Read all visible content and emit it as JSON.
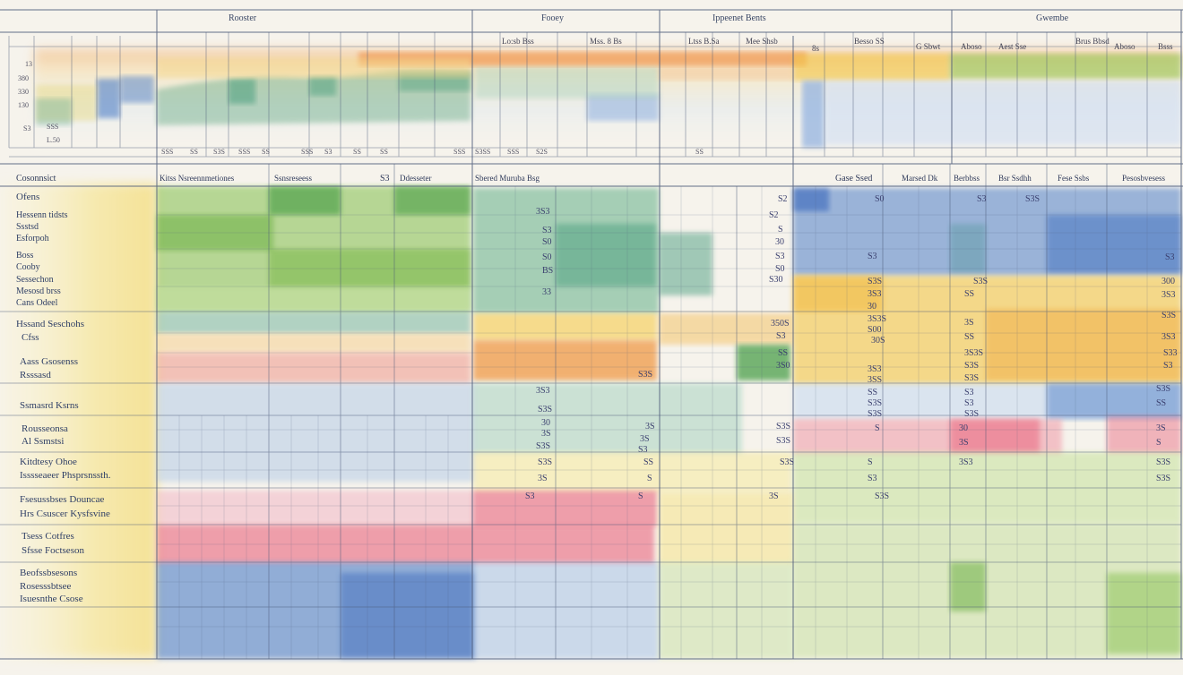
{
  "bands": [
    {
      "text": "Rooster"
    },
    {
      "text": "Fooey"
    },
    {
      "text": "Ippeenet Bents"
    },
    {
      "text": "Gwembe"
    }
  ],
  "subheaders": [
    {
      "text": "Lo:sb Bss"
    },
    {
      "text": "Mss. 8 Bs"
    },
    {
      "text": "Ltss B.Sa"
    },
    {
      "text": "Mee Shsb"
    },
    {
      "text": "8s"
    },
    {
      "text": "Besso SS"
    },
    {
      "text": "G Sbwt"
    },
    {
      "text": "Aboso"
    },
    {
      "text": "Aest Sse"
    },
    {
      "text": "Brus Bbsd"
    },
    {
      "text": "Aboso"
    },
    {
      "text": "Bsss"
    }
  ],
  "y_ticks": [
    {
      "text": "13"
    },
    {
      "text": "380"
    },
    {
      "text": "330"
    },
    {
      "text": "130"
    },
    {
      "text": "S3"
    },
    {
      "text": "L.50"
    },
    {
      "text": "SSS"
    }
  ],
  "x_ticks": [
    {
      "text": "SSS"
    },
    {
      "text": "SS"
    },
    {
      "text": "S3S"
    },
    {
      "text": "SSS"
    },
    {
      "text": "SS"
    },
    {
      "text": "SSS"
    },
    {
      "text": "S3"
    },
    {
      "text": "SS"
    },
    {
      "text": "SS"
    },
    {
      "text": "SSS"
    },
    {
      "text": "S3SS"
    },
    {
      "text": "SSS"
    },
    {
      "text": "S2S"
    },
    {
      "text": "SS"
    }
  ],
  "col_headers": [
    {
      "text": "Cosonnsict"
    },
    {
      "text": "Kitss Nsreennmetiones"
    },
    {
      "text": "Ssnsreseess"
    },
    {
      "text": "S3"
    },
    {
      "text": "Ddesseter"
    },
    {
      "text": "Sbered Muruba Bsg"
    },
    {
      "text": "Gase Ssed"
    },
    {
      "text": "Marsed Dk"
    },
    {
      "text": "Berbbss"
    },
    {
      "text": "Bsr Ssdhh"
    },
    {
      "text": "Fese Ssbs"
    },
    {
      "text": "Pesosbvesess"
    }
  ],
  "row_labels": [
    {
      "text": "Ofens"
    },
    {
      "text": "Hessenn tidsts"
    },
    {
      "text": "Ssstsd"
    },
    {
      "text": "Esforpoh"
    },
    {
      "text": "Boss"
    },
    {
      "text": "Cooby"
    },
    {
      "text": "Sessechon"
    },
    {
      "text": "Mesosd brss"
    },
    {
      "text": "Cans Odeel"
    },
    {
      "text": "Hssand Seschohs"
    },
    {
      "text": "Cfss"
    },
    {
      "text": "Aass Gsosenss"
    },
    {
      "text": "Rsssasd"
    },
    {
      "text": "Ssmasrd Ksrns"
    },
    {
      "text": "Rousseonsa"
    },
    {
      "text": "Al Ssmstsi"
    },
    {
      "text": "Kitdtesy Ohoe"
    },
    {
      "text": "Isssseaeer Phsprsnssth."
    },
    {
      "text": "Fsesussbses Douncae"
    },
    {
      "text": "Hrs Csuscer Kysfsvine"
    },
    {
      "text": "Tsess Cotfres"
    },
    {
      "text": "Sfsse Foctseson"
    },
    {
      "text": "Beofssbsesons"
    },
    {
      "text": "Rosesssbtsee"
    },
    {
      "text": "Isuesnthe Csose"
    }
  ],
  "values": [
    {
      "text": "3S3"
    },
    {
      "text": "S3"
    },
    {
      "text": "S0"
    },
    {
      "text": "S0"
    },
    {
      "text": "BS"
    },
    {
      "text": "33"
    },
    {
      "text": "S2"
    },
    {
      "text": "S2"
    },
    {
      "text": "S"
    },
    {
      "text": "30"
    },
    {
      "text": "S3"
    },
    {
      "text": "S0"
    },
    {
      "text": "S0"
    },
    {
      "text": "S3"
    },
    {
      "text": "S3S"
    },
    {
      "text": "S3"
    },
    {
      "text": "S3"
    },
    {
      "text": "S30"
    },
    {
      "text": "S3S"
    },
    {
      "text": "S3S"
    },
    {
      "text": "300"
    },
    {
      "text": "3S3"
    },
    {
      "text": "SS"
    },
    {
      "text": "3S3"
    },
    {
      "text": "30"
    },
    {
      "text": "S3S"
    },
    {
      "text": "350S"
    },
    {
      "text": "3S3S"
    },
    {
      "text": "3S"
    },
    {
      "text": "S00"
    },
    {
      "text": "S3"
    },
    {
      "text": "30S"
    },
    {
      "text": "SS"
    },
    {
      "text": "3S3"
    },
    {
      "text": "SS"
    },
    {
      "text": "3S3S"
    },
    {
      "text": "S33"
    },
    {
      "text": "3S0"
    },
    {
      "text": "3S3"
    },
    {
      "text": "S3S"
    },
    {
      "text": "S3"
    },
    {
      "text": "S3S"
    },
    {
      "text": "3SS"
    },
    {
      "text": "S3S"
    },
    {
      "text": "3S3"
    },
    {
      "text": "S3S"
    },
    {
      "text": "SS"
    },
    {
      "text": "S3"
    },
    {
      "text": "S3S"
    },
    {
      "text": "S3"
    },
    {
      "text": "SS"
    },
    {
      "text": "S3S"
    },
    {
      "text": "S3S"
    },
    {
      "text": "S3S"
    },
    {
      "text": "30"
    },
    {
      "text": "3S"
    },
    {
      "text": "S3S"
    },
    {
      "text": "S"
    },
    {
      "text": "30"
    },
    {
      "text": "3S"
    },
    {
      "text": "3S"
    },
    {
      "text": "3S"
    },
    {
      "text": "S3S"
    },
    {
      "text": "3S"
    },
    {
      "text": "S"
    },
    {
      "text": "S3S"
    },
    {
      "text": "S3"
    },
    {
      "text": "S3S"
    },
    {
      "text": "SS"
    },
    {
      "text": "S3S"
    },
    {
      "text": "S"
    },
    {
      "text": "3S3"
    },
    {
      "text": "S3S"
    },
    {
      "text": "3S"
    },
    {
      "text": "S"
    },
    {
      "text": "S3"
    },
    {
      "text": "S3S"
    },
    {
      "text": "S3"
    },
    {
      "text": "S"
    },
    {
      "text": "3S"
    },
    {
      "text": "S3S"
    }
  ],
  "colors": {
    "paper": "#f6f3ec",
    "grid": "#4a5878",
    "green": "#5aa64a",
    "teal": "#5aa68a",
    "blue": "#4f7fc8",
    "yellow": "#f3c748",
    "orange": "#f0953c",
    "pink": "#e9667f",
    "lightgreen": "#bcd98a",
    "lightblue": "#b7cde8"
  }
}
